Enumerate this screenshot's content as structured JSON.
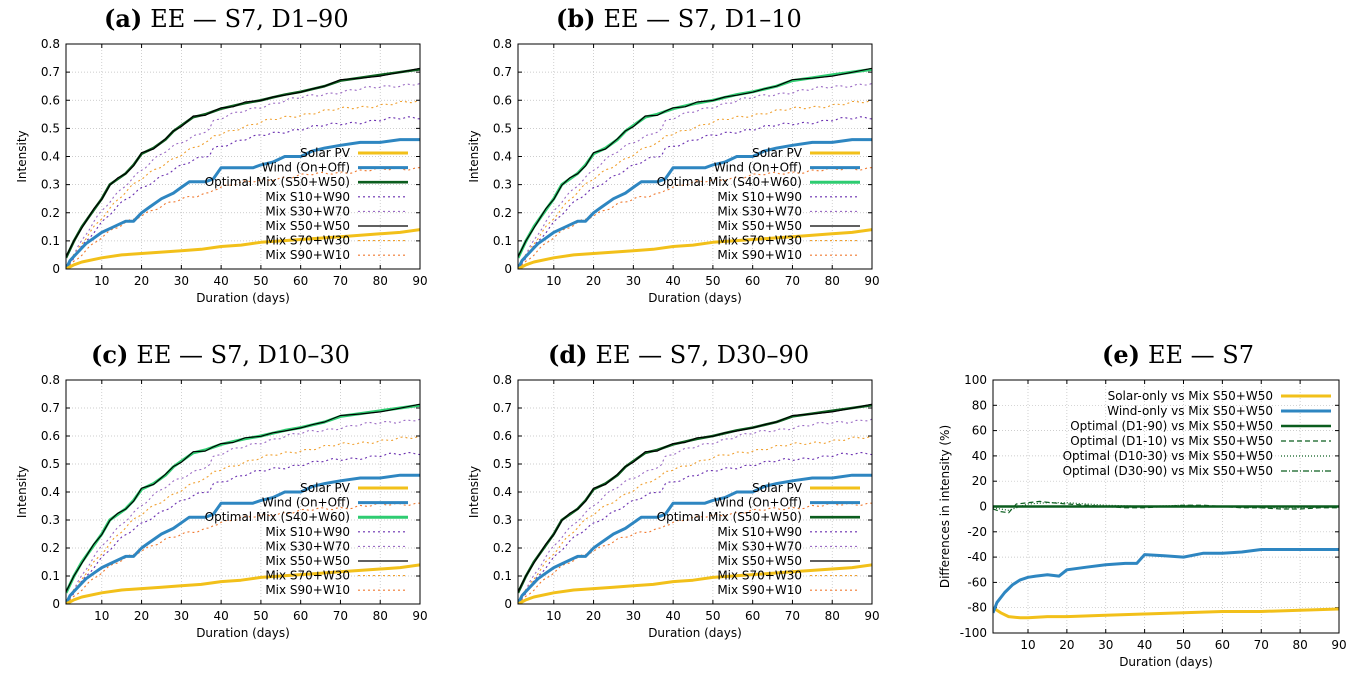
{
  "colors": {
    "solar": "#f2c01a",
    "wind": "#2e86c1",
    "optimal_green": "#2ecc71",
    "optimal_dark": "#0b5d1e",
    "s10": "#6a2fb0",
    "s30": "#9b6bc4",
    "s50": "#000000",
    "s70": "#f0a030",
    "s90": "#f07a30",
    "zero": "#0b5d1e"
  },
  "chart_data": [
    {
      "id": "a",
      "type": "line",
      "title_letter": "(a)",
      "title_rest": "EE — S7, D1–90",
      "xlabel": "Duration (days)",
      "ylabel": "Intensity",
      "xlim": [
        1,
        90
      ],
      "ylim": [
        0,
        0.8
      ],
      "xticks": [
        10,
        20,
        30,
        40,
        50,
        60,
        70,
        80,
        90
      ],
      "yticks": [
        0,
        0.1,
        0.2,
        0.3,
        0.4,
        0.5,
        0.6,
        0.7,
        0.8
      ],
      "legend_position": "bottom-right",
      "optimal_style": "dark",
      "series": [
        {
          "name": "Solar PV",
          "key": "solar"
        },
        {
          "name": "Wind (On+Off)",
          "key": "wind"
        },
        {
          "name": "Optimal Mix (S50+W50)",
          "key": "optimal"
        },
        {
          "name": "Mix S10+W90",
          "key": "s10"
        },
        {
          "name": "Mix S30+W70",
          "key": "s30"
        },
        {
          "name": "Mix S50+W50",
          "key": "s50"
        },
        {
          "name": "Mix S70+W30",
          "key": "s70"
        },
        {
          "name": "Mix S90+W10",
          "key": "s90"
        }
      ]
    },
    {
      "id": "b",
      "type": "line",
      "title_letter": "(b)",
      "title_rest": "EE — S7, D1–10",
      "xlabel": "Duration (days)",
      "ylabel": "Intensity",
      "xlim": [
        1,
        90
      ],
      "ylim": [
        0,
        0.8
      ],
      "xticks": [
        10,
        20,
        30,
        40,
        50,
        60,
        70,
        80,
        90
      ],
      "yticks": [
        0,
        0.1,
        0.2,
        0.3,
        0.4,
        0.5,
        0.6,
        0.7,
        0.8
      ],
      "legend_position": "bottom-right",
      "optimal_style": "green",
      "series": [
        {
          "name": "Solar PV",
          "key": "solar"
        },
        {
          "name": "Wind (On+Off)",
          "key": "wind"
        },
        {
          "name": "Optimal Mix (S40+W60)",
          "key": "optimal"
        },
        {
          "name": "Mix S10+W90",
          "key": "s10"
        },
        {
          "name": "Mix S30+W70",
          "key": "s30"
        },
        {
          "name": "Mix S50+W50",
          "key": "s50"
        },
        {
          "name": "Mix S70+W30",
          "key": "s70"
        },
        {
          "name": "Mix S90+W10",
          "key": "s90"
        }
      ]
    },
    {
      "id": "c",
      "type": "line",
      "title_letter": "(c)",
      "title_rest": "EE — S7, D10–30",
      "xlabel": "Duration (days)",
      "ylabel": "Intensity",
      "xlim": [
        1,
        90
      ],
      "ylim": [
        0,
        0.8
      ],
      "xticks": [
        10,
        20,
        30,
        40,
        50,
        60,
        70,
        80,
        90
      ],
      "yticks": [
        0,
        0.1,
        0.2,
        0.3,
        0.4,
        0.5,
        0.6,
        0.7,
        0.8
      ],
      "legend_position": "bottom-right",
      "optimal_style": "green",
      "series": [
        {
          "name": "Solar PV",
          "key": "solar"
        },
        {
          "name": "Wind (On+Off)",
          "key": "wind"
        },
        {
          "name": "Optimal Mix (S40+W60)",
          "key": "optimal"
        },
        {
          "name": "Mix S10+W90",
          "key": "s10"
        },
        {
          "name": "Mix S30+W70",
          "key": "s30"
        },
        {
          "name": "Mix S50+W50",
          "key": "s50"
        },
        {
          "name": "Mix S70+W30",
          "key": "s70"
        },
        {
          "name": "Mix S90+W10",
          "key": "s90"
        }
      ]
    },
    {
      "id": "d",
      "type": "line",
      "title_letter": "(d)",
      "title_rest": "EE — S7, D30–90",
      "xlabel": "Duration (days)",
      "ylabel": "Intensity",
      "xlim": [
        1,
        90
      ],
      "ylim": [
        0,
        0.8
      ],
      "xticks": [
        10,
        20,
        30,
        40,
        50,
        60,
        70,
        80,
        90
      ],
      "yticks": [
        0,
        0.1,
        0.2,
        0.3,
        0.4,
        0.5,
        0.6,
        0.7,
        0.8
      ],
      "legend_position": "bottom-right",
      "optimal_style": "dark",
      "series": [
        {
          "name": "Solar PV",
          "key": "solar"
        },
        {
          "name": "Wind (On+Off)",
          "key": "wind"
        },
        {
          "name": "Optimal Mix (S50+W50)",
          "key": "optimal"
        },
        {
          "name": "Mix S10+W90",
          "key": "s10"
        },
        {
          "name": "Mix S30+W70",
          "key": "s30"
        },
        {
          "name": "Mix S50+W50",
          "key": "s50"
        },
        {
          "name": "Mix S70+W30",
          "key": "s70"
        },
        {
          "name": "Mix S90+W10",
          "key": "s90"
        }
      ]
    },
    {
      "id": "e",
      "type": "line",
      "title_letter": "(e)",
      "title_rest": "EE — S7",
      "xlabel": "Duration (days)",
      "ylabel": "Differences in intensity (%)",
      "xlim": [
        1,
        90
      ],
      "ylim": [
        -100,
        100
      ],
      "xticks": [
        10,
        20,
        30,
        40,
        50,
        60,
        70,
        80,
        90
      ],
      "yticks": [
        -100,
        -80,
        -60,
        -40,
        -20,
        0,
        20,
        40,
        60,
        80,
        100
      ],
      "legend_position": "top-right",
      "series": [
        {
          "name": "Solar-only vs Mix S50+W50",
          "key": "solar_diff"
        },
        {
          "name": "Wind-only vs Mix S50+W50",
          "key": "wind_diff"
        },
        {
          "name": "Optimal (D1-90) vs Mix S50+W50",
          "key": "opt_d1_90"
        },
        {
          "name": "Optimal (D1-10) vs Mix S50+W50",
          "key": "opt_d1_10"
        },
        {
          "name": "Optimal (D10-30) vs Mix S50+W50",
          "key": "opt_d10_30"
        },
        {
          "name": "Optimal (D30-90) vs Mix S50+W50",
          "key": "opt_d30_90"
        }
      ],
      "values": {
        "solar_diff": {
          "x": [
            1,
            3,
            5,
            8,
            10,
            15,
            20,
            30,
            40,
            50,
            60,
            70,
            80,
            90
          ],
          "y": [
            -80,
            -84,
            -87,
            -88,
            -88,
            -87,
            -87,
            -86,
            -85,
            -84,
            -83,
            -83,
            -82,
            -81
          ]
        },
        "wind_diff": {
          "x": [
            1,
            2,
            4,
            6,
            8,
            10,
            12,
            15,
            18,
            20,
            25,
            30,
            35,
            38,
            40,
            45,
            50,
            55,
            60,
            65,
            70,
            80,
            90
          ],
          "y": [
            -84,
            -76,
            -68,
            -62,
            -58,
            -56,
            -55,
            -54,
            -55,
            -50,
            -48,
            -46,
            -45,
            -45,
            -38,
            -39,
            -40,
            -37,
            -37,
            -36,
            -34,
            -34,
            -34
          ]
        },
        "opt_d1_90": {
          "x": [
            1,
            90
          ],
          "y": [
            0,
            0
          ]
        },
        "opt_d1_10": {
          "x": [
            1,
            3,
            5,
            7,
            10,
            13,
            16,
            20,
            25,
            30,
            35,
            40,
            45,
            50,
            55,
            60,
            65,
            70,
            75,
            80,
            85,
            90
          ],
          "y": [
            -2,
            -4,
            -5,
            2,
            3,
            4,
            3,
            2,
            1,
            0,
            -1,
            -1,
            0,
            1,
            1,
            0,
            -1,
            -1,
            -2,
            -2,
            -1,
            -1
          ]
        },
        "opt_d10_30": {
          "x": [
            1,
            5,
            10,
            15,
            20,
            25,
            30,
            40,
            50,
            60,
            70,
            80,
            90
          ],
          "y": [
            -1,
            -3,
            2,
            3,
            3,
            2,
            1,
            0,
            1,
            0,
            -1,
            -1,
            0
          ]
        },
        "opt_d30_90": {
          "x": [
            1,
            90
          ],
          "y": [
            0,
            0
          ]
        }
      }
    }
  ]
}
